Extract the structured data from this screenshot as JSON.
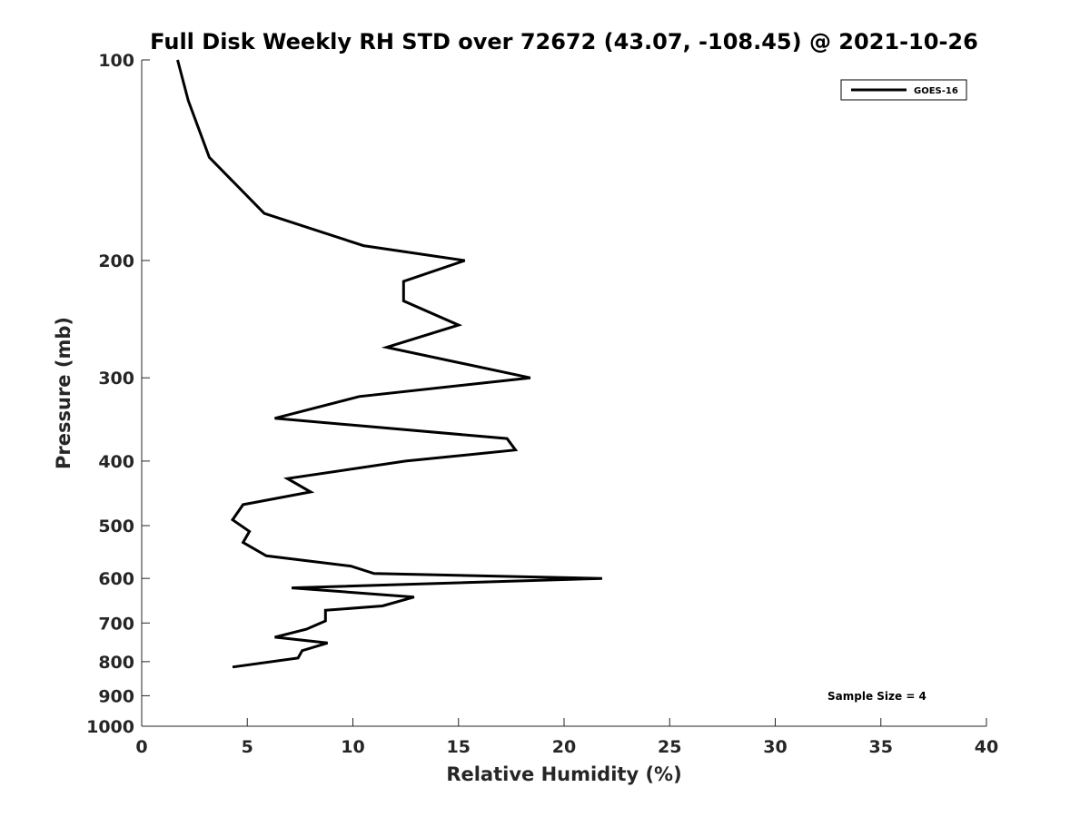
{
  "chart_data": {
    "type": "line",
    "title": "Full Disk Weekly RH STD over 72672 (43.07, -108.45) @ 2021-10-26",
    "xlabel": "Relative Humidity (%)",
    "ylabel": "Pressure (mb)",
    "xlim": [
      0,
      40
    ],
    "ylim": [
      100,
      1000
    ],
    "yscale": "log",
    "y_reversed": true,
    "xticks": [
      0,
      5,
      10,
      15,
      20,
      25,
      30,
      35,
      40
    ],
    "yticks": [
      100,
      200,
      300,
      400,
      500,
      600,
      700,
      800,
      900,
      1000
    ],
    "legend_location": "top-right",
    "series": [
      {
        "name": "GOES-16",
        "color": "#000000",
        "x": [
          1.7,
          2.2,
          3.2,
          5.8,
          10.5,
          15.3,
          12.4,
          12.4,
          15.0,
          11.6,
          18.4,
          10.3,
          6.3,
          17.3,
          17.7,
          12.5,
          6.9,
          8.0,
          4.8,
          4.3,
          5.1,
          4.8,
          5.9,
          9.9,
          11.0,
          21.8,
          7.1,
          12.9,
          11.4,
          8.7,
          8.7,
          7.8,
          6.3,
          8.8,
          7.6,
          7.4,
          4.3
        ],
        "y": [
          100,
          115,
          140,
          170,
          190,
          200,
          215,
          230,
          250,
          270,
          300,
          320,
          345,
          370,
          385,
          400,
          425,
          445,
          465,
          490,
          510,
          530,
          555,
          575,
          590,
          600,
          620,
          640,
          660,
          670,
          695,
          715,
          735,
          750,
          770,
          790,
          815
        ]
      }
    ],
    "annotations": [
      {
        "text": "Sample Size = 4",
        "location": "bottom-right"
      }
    ]
  }
}
